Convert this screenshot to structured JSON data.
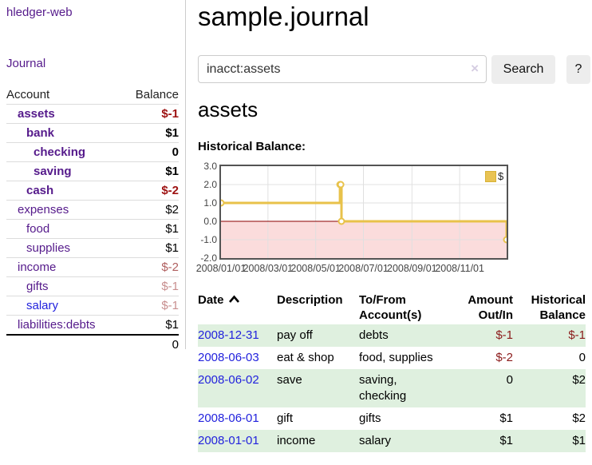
{
  "sidebar": {
    "app_title": "hledger-web",
    "journal_link": "Journal",
    "account_header": "Account",
    "balance_header": "Balance",
    "accounts": [
      {
        "name": "assets",
        "balance": "$-1"
      },
      {
        "name": "bank",
        "balance": "$1"
      },
      {
        "name": "checking",
        "balance": "0"
      },
      {
        "name": "saving",
        "balance": "$1"
      },
      {
        "name": "cash",
        "balance": "$-2"
      },
      {
        "name": "expenses",
        "balance": "$2"
      },
      {
        "name": "food",
        "balance": "$1"
      },
      {
        "name": "supplies",
        "balance": "$1"
      },
      {
        "name": "income",
        "balance": "$-2"
      },
      {
        "name": "gifts",
        "balance": "$-1"
      },
      {
        "name": "salary",
        "balance": "$-1"
      },
      {
        "name": "liabilities:debts",
        "balance": "$1"
      }
    ],
    "total": "0"
  },
  "main": {
    "title": "sample.journal",
    "account_heading": "assets"
  },
  "search": {
    "value": "inacct:assets",
    "clear_icon": "×",
    "search_button": "Search",
    "help_button": "?"
  },
  "chart_data": {
    "type": "line",
    "title": "Historical Balance:",
    "x_range": [
      "2008/01/01",
      "2008/12/31"
    ],
    "ylim": [
      -2,
      3
    ],
    "series": [
      {
        "name": "$",
        "color": "#e8c24a",
        "step": true,
        "points": [
          [
            "2008/01/01",
            1
          ],
          [
            "2008/06/01",
            2
          ],
          [
            "2008/06/02",
            2
          ],
          [
            "2008/06/03",
            0
          ],
          [
            "2008/12/31",
            -1
          ]
        ]
      }
    ],
    "y_ticks": [
      {
        "v": 3,
        "label": "3.0"
      },
      {
        "v": 2,
        "label": "2.0"
      },
      {
        "v": 1,
        "label": "1.0"
      },
      {
        "v": 0,
        "label": "0.0"
      },
      {
        "v": -1,
        "label": "-1.0"
      },
      {
        "v": -2,
        "label": "-2.0"
      }
    ],
    "y_gridlines": [
      2,
      1,
      -1
    ],
    "x_ticks": [
      {
        "date": "2008/01/01",
        "label": "2008/01/01"
      },
      {
        "date": "2008/03/01",
        "label": "2008/03/01"
      },
      {
        "date": "2008/05/01",
        "label": "2008/05/01"
      },
      {
        "date": "2008/07/01",
        "label": "2008/07/01"
      },
      {
        "date": "2008/09/01",
        "label": "2008/09/01"
      },
      {
        "date": "2008/11/01",
        "label": "2008/11/01"
      }
    ],
    "legend_position": "top-right",
    "negative_region_color": "#fbdcdc",
    "zero_line_color": "#8b0000",
    "grid_color": "#e0e0e0"
  },
  "register": {
    "headers": [
      {
        "l1": "Date"
      },
      {
        "l1": "Description"
      },
      {
        "l1": "To/From",
        "l2": "Account(s)"
      },
      {
        "l1": "Amount",
        "l2": "Out/In"
      },
      {
        "l1": "Historical",
        "l2": "Balance"
      }
    ],
    "rows": [
      {
        "date": "2008-12-31",
        "description": "pay off",
        "account": "debts",
        "amount": "$-1",
        "balance": "$-1"
      },
      {
        "date": "2008-06-03",
        "description": "eat & shop",
        "account": "food, supplies",
        "amount": "$-2",
        "balance": "0"
      },
      {
        "date": "2008-06-02",
        "description": "save",
        "account": "saving, checking",
        "amount": "0",
        "balance": "$2"
      },
      {
        "date": "2008-06-01",
        "description": "gift",
        "account": "gifts",
        "amount": "$1",
        "balance": "$2"
      },
      {
        "date": "2008-01-01",
        "description": "income",
        "account": "salary",
        "amount": "$1",
        "balance": "$1"
      }
    ]
  }
}
